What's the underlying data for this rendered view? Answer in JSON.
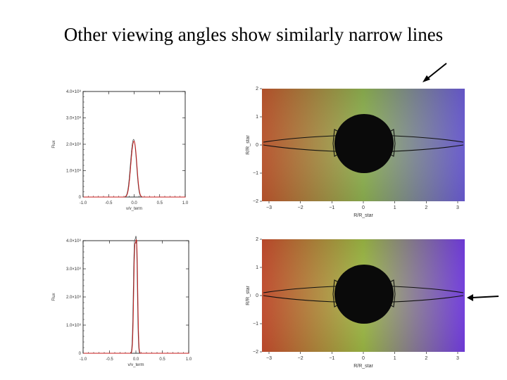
{
  "slide": {
    "title": "Other viewing angles show similarly narrow lines"
  },
  "spectra": [
    {
      "ylabel": "Flux",
      "xlabel": "v/v_term",
      "xticks": [
        "-1.0",
        "-0.5",
        "0.0",
        "0.5",
        "1.0"
      ],
      "yticks": [
        "0",
        "1.0×10⁸",
        "2.0×10⁸",
        "3.0×10⁸",
        "4.0×10⁸"
      ],
      "xlim": [
        -1.0,
        1.0
      ],
      "ylim": [
        0,
        400000000.0
      ],
      "line_color": "#c81818",
      "peaks": [
        {
          "v": -0.04,
          "flux": 155000000.0,
          "width": 0.045
        },
        {
          "v": 0.02,
          "flux": 125000000.0,
          "width": 0.04
        }
      ]
    },
    {
      "ylabel": "Flux",
      "xlabel": "v/v_term",
      "xticks": [
        "-1.0",
        "-0.5",
        "0.0",
        "0.5",
        "1.0"
      ],
      "yticks": [
        "0",
        "1.0×10⁸",
        "2.0×10⁸",
        "3.0×10⁸",
        "4.0×10⁸"
      ],
      "xlim": [
        -1.0,
        1.0
      ],
      "ylim": [
        0,
        400000000.0
      ],
      "line_color": "#c81818",
      "peaks": [
        {
          "v": -0.03,
          "flux": 360000000.0,
          "width": 0.02
        },
        {
          "v": 0.01,
          "flux": 350000000.0,
          "width": 0.018
        }
      ]
    }
  ],
  "maps": [
    {
      "ylabel": "R/R_star",
      "xlabel": "R/R_star",
      "xticks": [
        "−3",
        "−2",
        "−1",
        "0",
        "1",
        "2",
        "3"
      ],
      "yticks": [
        "−2",
        "−1",
        "0",
        "1",
        "2"
      ],
      "colors": {
        "left": "#c85a30",
        "mid": "#8ab04a",
        "right": "#7060e0"
      }
    },
    {
      "ylabel": "R/R_star",
      "xlabel": "R/R_star",
      "xticks": [
        "−3",
        "−2",
        "−1",
        "0",
        "1",
        "2",
        "3"
      ],
      "yticks": [
        "−2",
        "−1",
        "0",
        "1",
        "2"
      ],
      "colors": {
        "left": "#d05030",
        "mid": "#9ab83e",
        "right": "#7a40f0"
      }
    }
  ]
}
